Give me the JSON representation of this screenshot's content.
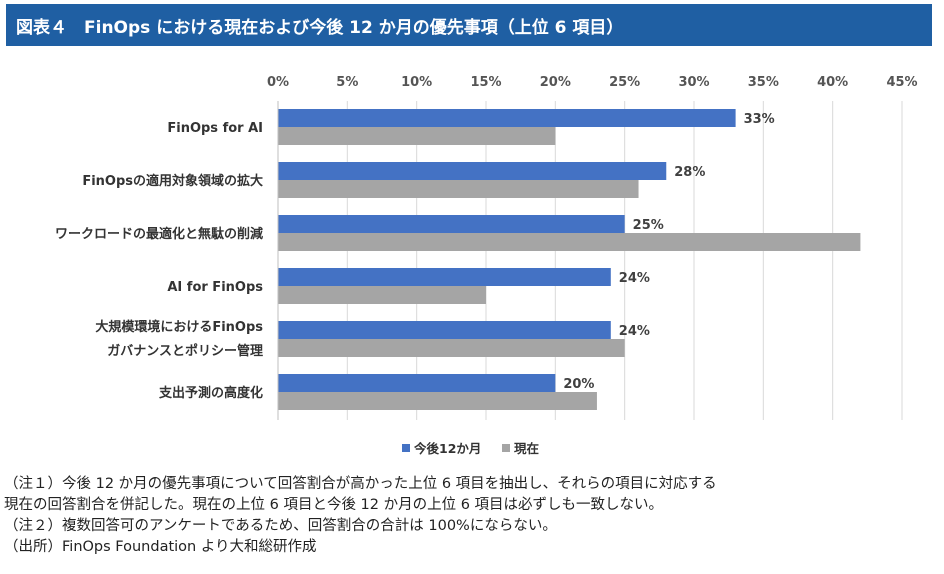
{
  "title": "図表４　FinOps における現在および今後 12 か月の優先事項（上位 6 項目）",
  "colors": {
    "title_bg": "#1f5fa3",
    "series_future": "#4472c4",
    "series_current": "#a5a5a5",
    "grid": "#d9d9d9"
  },
  "chart_data": {
    "type": "bar",
    "orientation": "horizontal",
    "categories": [
      [
        "FinOps for AI"
      ],
      [
        "FinOpsの適用対象領域の拡大"
      ],
      [
        "ワークロードの最適化と無駄の削減"
      ],
      [
        "AI for FinOps"
      ],
      [
        "大規模環境におけるFinOps",
        "ガバナンスとポリシー管理"
      ],
      [
        "支出予測の高度化"
      ]
    ],
    "series": [
      {
        "name": "今後12か月",
        "values": [
          33,
          28,
          25,
          24,
          24,
          20
        ],
        "labels": [
          "33%",
          "28%",
          "25%",
          "24%",
          "24%",
          "20%"
        ],
        "color": "#4472c4"
      },
      {
        "name": "現在",
        "values": [
          20,
          26,
          42,
          15,
          25,
          23
        ],
        "color": "#a5a5a5"
      }
    ],
    "xlim": [
      0,
      45
    ],
    "ticks": [
      0,
      5,
      10,
      15,
      20,
      25,
      30,
      35,
      40,
      45
    ],
    "tick_labels": [
      "0%",
      "5%",
      "10%",
      "15%",
      "20%",
      "25%",
      "30%",
      "35%",
      "40%",
      "45%"
    ],
    "x_axis_position": "top",
    "grid": true,
    "legend": "bottom"
  },
  "notes": [
    "（注１）今後 12 か月の優先事項について回答割合が高かった上位 6 項目を抽出し、それらの項目に対応する",
    "現在の回答割合を併記した。現在の上位 6 項目と今後 12 か月の上位 6 項目は必ずしも一致しない。",
    "（注２）複数回答可のアンケートであるため、回答割合の合計は 100%にならない。",
    "（出所）FinOps Foundation より大和総研作成"
  ]
}
